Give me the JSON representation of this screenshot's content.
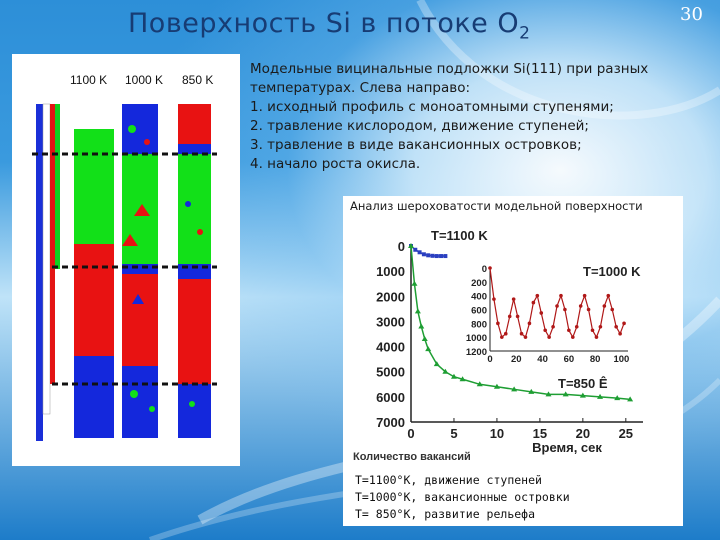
{
  "slide": {
    "title": "Поверхность Si в потоке O",
    "title_subscript": "2",
    "page_number": "30"
  },
  "simulation": {
    "column_labels": [
      "1100 K",
      "1000 K",
      "850 K"
    ]
  },
  "description": {
    "lines": [
      "Модельные вицинальные подложки Si(111) при разных",
      "температурах. Слева направо:",
      "1. исходный профиль с моноатомными ступенями;",
      "2. травление кислородом, движение ступеней;",
      "3. травление в виде вакансионных островков;",
      "4. начало роста окисла."
    ]
  },
  "chart": {
    "caption": "Анализ шероховатости модельной поверхности"
  },
  "legend": {
    "lines": [
      "T=1100°K, движение ступеней",
      "T=1000°K, вакансионные островки",
      "T= 850°K, развитие рельефа"
    ]
  },
  "chart_data": [
    {
      "type": "line",
      "title": "",
      "xlabel": "Время, сек",
      "ylabel": "Количество вакансий",
      "xlim": [
        0,
        27
      ],
      "ylim": [
        7000,
        0
      ],
      "x_ticks": [
        0,
        5,
        10,
        15,
        20,
        25
      ],
      "y_ticks": [
        0,
        1000,
        2000,
        3000,
        4000,
        5000,
        6000,
        7000
      ],
      "series": [
        {
          "name": "T=1100 K",
          "color": "#2a3fc0",
          "x": [
            0,
            0.5,
            1,
            1.5,
            2,
            2.5,
            3,
            3.5,
            4
          ],
          "y": [
            0,
            150,
            250,
            330,
            370,
            390,
            400,
            400,
            400
          ]
        },
        {
          "name": "T=850 Ê",
          "color": "#1e9e33",
          "x": [
            0,
            0.4,
            0.8,
            1.2,
            1.6,
            2,
            3,
            4,
            5,
            6,
            8,
            10,
            12,
            14,
            16,
            18,
            20,
            22,
            24,
            25.5
          ],
          "y": [
            0,
            1500,
            2600,
            3200,
            3700,
            4100,
            4700,
            5000,
            5200,
            5300,
            5500,
            5600,
            5700,
            5800,
            5900,
            5900,
            5950,
            6000,
            6050,
            6100
          ]
        }
      ]
    },
    {
      "type": "line",
      "title": "",
      "xlabel": "",
      "ylabel": "",
      "xlim": [
        0,
        105
      ],
      "ylim": [
        1200,
        0
      ],
      "x_ticks": [
        0,
        20,
        40,
        60,
        80,
        100
      ],
      "y_ticks": [
        0,
        200,
        400,
        600,
        800,
        1000,
        1200
      ],
      "series": [
        {
          "name": "T=1000 K",
          "color": "#b01818",
          "x": [
            0,
            3,
            6,
            9,
            12,
            15,
            18,
            21,
            24,
            27,
            30,
            33,
            36,
            39,
            42,
            45,
            48,
            51,
            54,
            57,
            60,
            63,
            66,
            69,
            72,
            75,
            78,
            81,
            84,
            87,
            90,
            93,
            96,
            99,
            102
          ],
          "y": [
            0,
            450,
            800,
            1000,
            950,
            700,
            450,
            700,
            950,
            1000,
            800,
            500,
            400,
            650,
            900,
            1000,
            850,
            550,
            400,
            600,
            900,
            1000,
            850,
            550,
            400,
            600,
            900,
            1000,
            850,
            550,
            400,
            600,
            850,
            950,
            800
          ]
        }
      ]
    }
  ]
}
